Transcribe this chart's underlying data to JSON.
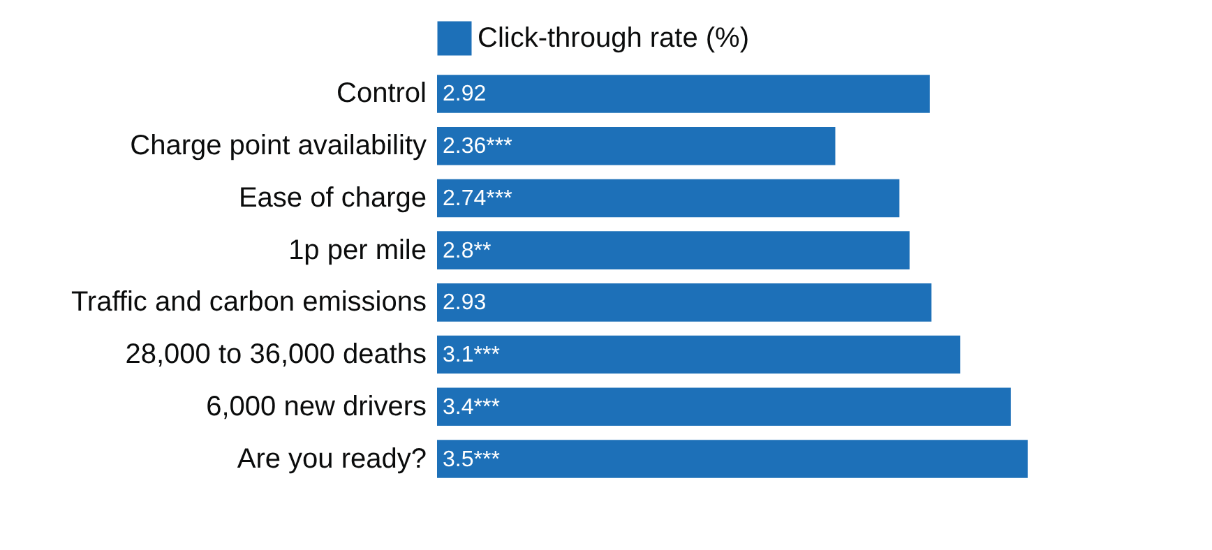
{
  "chart_data": {
    "type": "bar",
    "orientation": "horizontal",
    "categories": [
      "Control",
      "Charge point availability",
      "Ease of charge",
      "1p per mile",
      "Traffic and carbon emissions",
      "28,000 to 36,000 deaths",
      "6,000 new drivers",
      "Are you ready?"
    ],
    "series": [
      {
        "name": "Click-through rate (%)",
        "color": "#1d70b8",
        "values": [
          2.92,
          2.36,
          2.74,
          2.8,
          2.93,
          3.1,
          3.4,
          3.5
        ],
        "value_labels": [
          "2.92",
          "2.36***",
          "2.74***",
          "2.8**",
          "2.93",
          "3.1***",
          "3.4***",
          "3.5***"
        ]
      }
    ],
    "legend": "top",
    "grid": false
  }
}
